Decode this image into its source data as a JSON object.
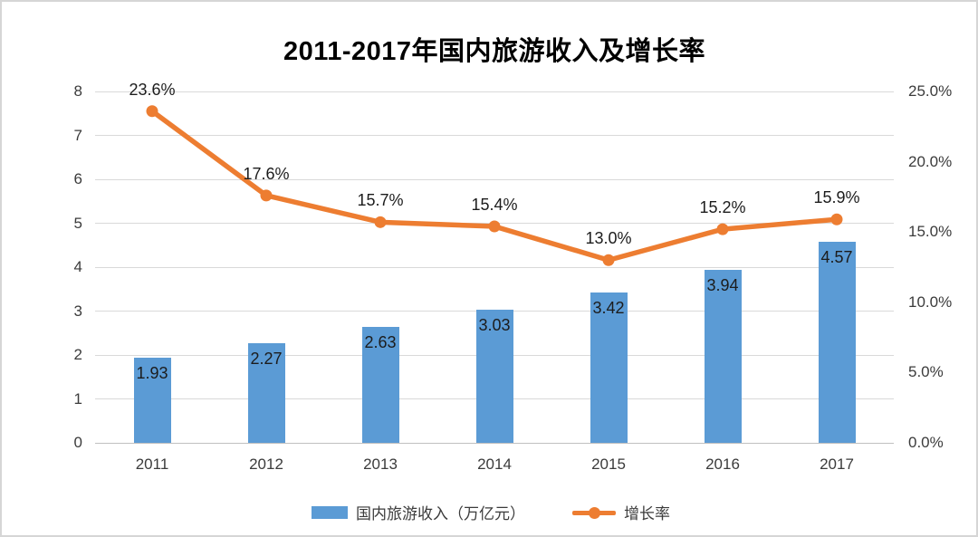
{
  "title": "2011-2017年国内旅游收入及增长率",
  "colors": {
    "bar": "#5B9BD5",
    "line": "#ED7D31",
    "grid": "#d9d9d9",
    "baseline": "#bfbfbf",
    "axis_text": "#3b3b3b",
    "data_label_text": "#1c1c1c"
  },
  "chart_data": {
    "type": "combo-bar-line",
    "title": "2011-2017年国内旅游收入及增长率",
    "categories": [
      "2011",
      "2012",
      "2013",
      "2014",
      "2015",
      "2016",
      "2017"
    ],
    "series": [
      {
        "name": "国内旅游收入（万亿元）",
        "type": "bar",
        "axis": "left",
        "values": [
          1.93,
          2.27,
          2.63,
          3.03,
          3.42,
          3.94,
          4.57
        ],
        "labels": [
          "1.93",
          "2.27",
          "2.63",
          "3.03",
          "3.42",
          "3.94",
          "4.57"
        ]
      },
      {
        "name": "增长率",
        "type": "line",
        "axis": "right",
        "values": [
          23.6,
          17.6,
          15.7,
          15.4,
          13.0,
          15.2,
          15.9
        ],
        "labels": [
          "23.6%",
          "17.6%",
          "15.7%",
          "15.4%",
          "13.0%",
          "15.2%",
          "15.9%"
        ]
      }
    ],
    "left_axis": {
      "min": 0,
      "max": 8,
      "ticks": [
        "0",
        "1",
        "2",
        "3",
        "4",
        "5",
        "6",
        "7",
        "8"
      ]
    },
    "right_axis": {
      "min": 0,
      "max": 25,
      "ticks": [
        "0.0%",
        "5.0%",
        "10.0%",
        "15.0%",
        "20.0%",
        "25.0%"
      ]
    },
    "grid": true,
    "legend_position": "bottom"
  }
}
